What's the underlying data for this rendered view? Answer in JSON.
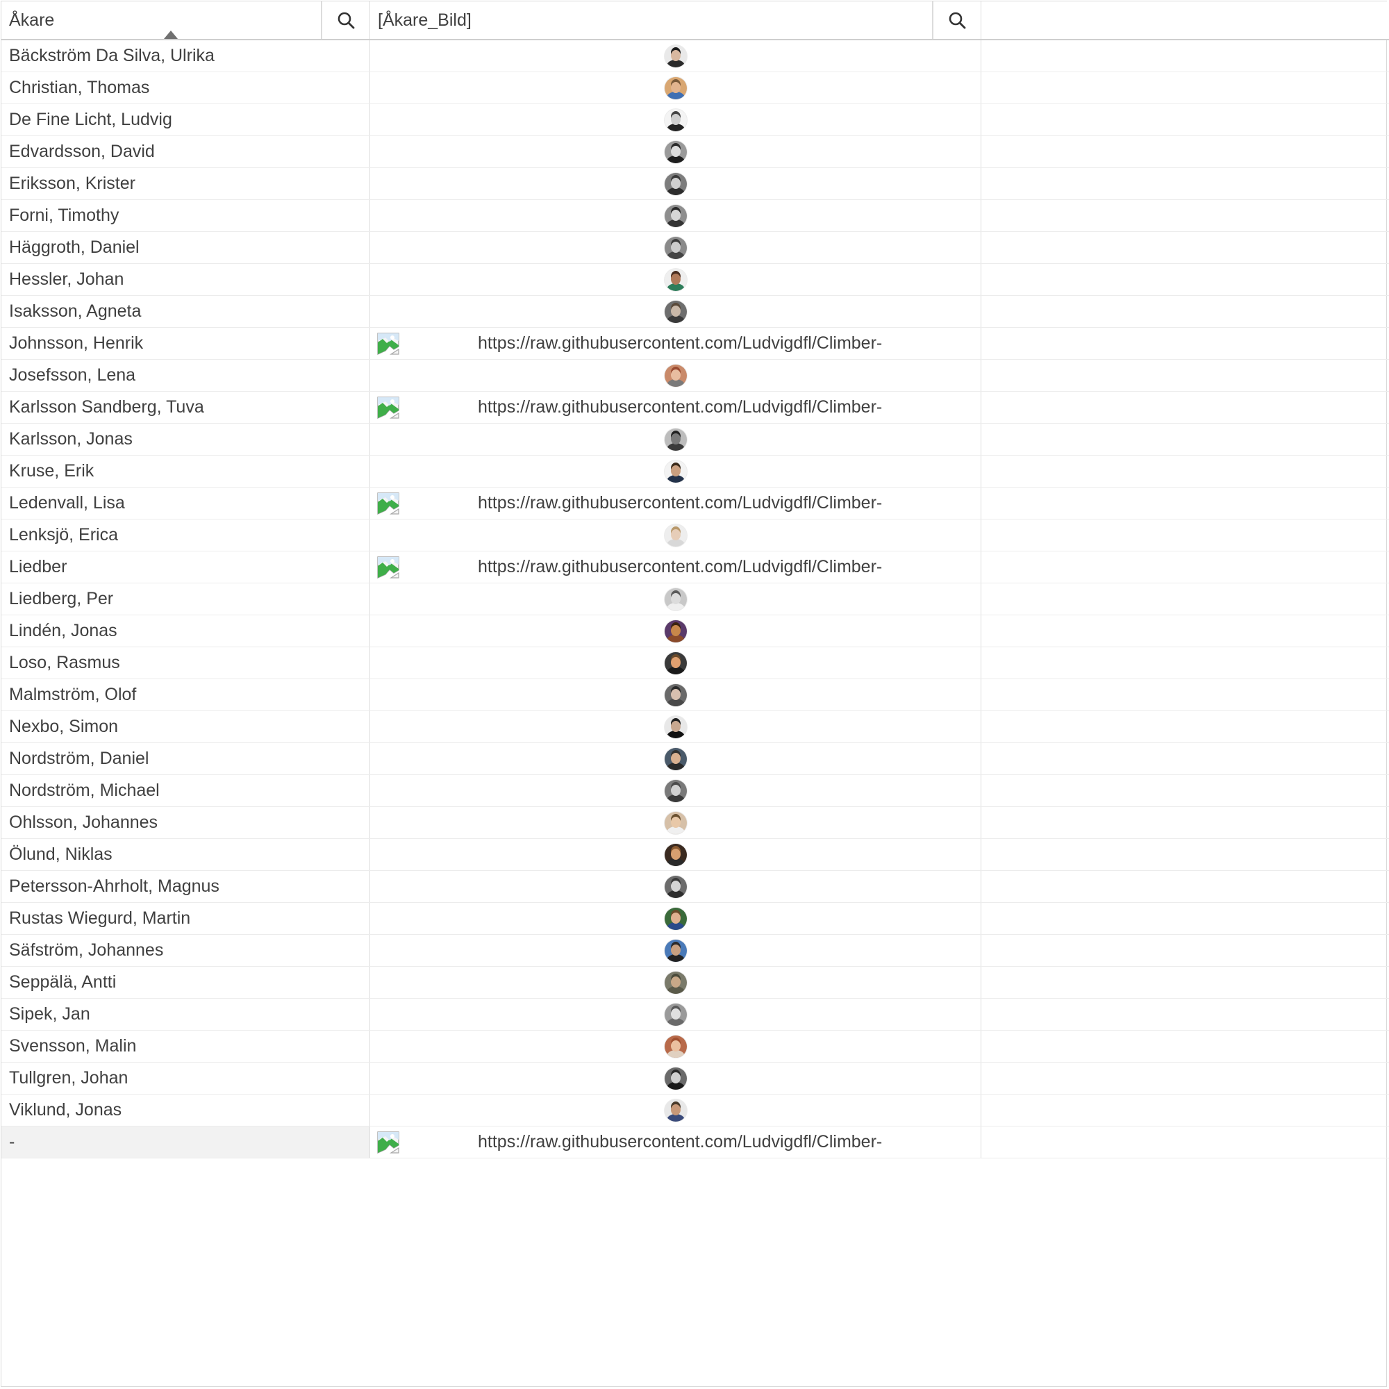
{
  "header": {
    "col1_label": "Åkare",
    "col2_label": "[Åkare_Bild]"
  },
  "colors": {
    "grid_line": "#dcdcdc",
    "header_border": "#cfcfcf",
    "text": "#404040",
    "selected_row_bg": "#f2f2f2",
    "sort_caret": "#707070"
  },
  "url_prefix_text": "https://raw.githubusercontent.com/Ludvigdfl/Climber-",
  "rows": [
    {
      "name": "Bäckström Da Silva, Ulrika",
      "image": "avatar",
      "bg": "#e9e9e9",
      "skin": "#d8b8a0",
      "hair": "#1a1a1a",
      "shirt": "#2a2a2a"
    },
    {
      "name": "Christian, Thomas",
      "image": "avatar",
      "bg": "#d9a772",
      "skin": "#e2b48f",
      "hair": "#7a5a3a",
      "shirt": "#3f6fb3"
    },
    {
      "name": "De Fine Licht, Ludvig",
      "image": "avatar",
      "bg": "#f4f4f4",
      "skin": "#cfcfcf",
      "hair": "#444444",
      "shirt": "#222222"
    },
    {
      "name": "Edvardsson, David",
      "image": "avatar",
      "bg": "#9a9a9a",
      "skin": "#dddddd",
      "hair": "#2b2b2b",
      "shirt": "#1e1e1e"
    },
    {
      "name": "Eriksson, Krister",
      "image": "avatar",
      "bg": "#7d7d7d",
      "skin": "#cfcfcf",
      "hair": "#3a3a3a",
      "shirt": "#2d2d2d"
    },
    {
      "name": "Forni, Timothy",
      "image": "avatar",
      "bg": "#8e8e8e",
      "skin": "#d6d6d6",
      "hair": "#2a2a2a",
      "shirt": "#333333"
    },
    {
      "name": "Häggroth, Daniel",
      "image": "avatar",
      "bg": "#8a8a8a",
      "skin": "#cccccc",
      "hair": "#3c3c3c",
      "shirt": "#444444"
    },
    {
      "name": "Hessler, Johan",
      "image": "avatar",
      "bg": "#efefef",
      "skin": "#b07a5a",
      "hair": "#4a2e20",
      "shirt": "#2e7d5a"
    },
    {
      "name": "Isaksson, Agneta",
      "image": "avatar",
      "bg": "#6e6e6e",
      "skin": "#c9b8a8",
      "hair": "#5a4a3a",
      "shirt": "#3a3a3a"
    },
    {
      "name": "Johnsson, Henrik",
      "image": "broken"
    },
    {
      "name": "Josefsson, Lena",
      "image": "avatar",
      "bg": "#c98a6a",
      "skin": "#e8bda0",
      "hair": "#9a4a30",
      "shirt": "#7a7a7a"
    },
    {
      "name": "Karlsson Sandberg, Tuva",
      "image": "broken"
    },
    {
      "name": "Karlsson, Jonas",
      "image": "avatar",
      "bg": "#bdbdbd",
      "skin": "#7a7a7a",
      "hair": "#222222",
      "shirt": "#3a3a3a"
    },
    {
      "name": "Kruse, Erik",
      "image": "avatar",
      "bg": "#f3f3f3",
      "skin": "#caa080",
      "hair": "#3a2a1a",
      "shirt": "#23324a"
    },
    {
      "name": "Ledenvall, Lisa",
      "image": "broken"
    },
    {
      "name": "Lenksjö, Erica",
      "image": "avatar",
      "bg": "#eeeeee",
      "skin": "#e6cdb8",
      "hair": "#b8986a",
      "shirt": "#d8d8d8"
    },
    {
      "name": "Liedber",
      "image": "broken"
    },
    {
      "name": "Liedberg, Per",
      "image": "avatar",
      "bg": "#c8c8c8",
      "skin": "#dcdcdc",
      "hair": "#5a5a5a",
      "shirt": "#efefef"
    },
    {
      "name": "Lindén, Jonas",
      "image": "avatar",
      "bg": "#5a3a6a",
      "skin": "#c7874a",
      "hair": "#3a2310",
      "shirt": "#8a4a2a"
    },
    {
      "name": "Loso, Rasmus",
      "image": "avatar",
      "bg": "#3a3a3a",
      "skin": "#e0a070",
      "hair": "#6a4a2a",
      "shirt": "#1a1a1a"
    },
    {
      "name": "Malmström, Olof",
      "image": "avatar",
      "bg": "#6a6a6a",
      "skin": "#d8c0b0",
      "hair": "#2a2a2a",
      "shirt": "#4a4a4a"
    },
    {
      "name": "Nexbo, Simon",
      "image": "avatar",
      "bg": "#e8e8e8",
      "skin": "#c8a890",
      "hair": "#1e1e1e",
      "shirt": "#111111"
    },
    {
      "name": "Nordström, Daniel",
      "image": "avatar",
      "bg": "#4a5a6a",
      "skin": "#d9b090",
      "hair": "#303030",
      "shirt": "#2a2a2a"
    },
    {
      "name": "Nordström, Michael",
      "image": "avatar",
      "bg": "#7a7a7a",
      "skin": "#d0d0d0",
      "hair": "#4a4a4a",
      "shirt": "#3a3a3a"
    },
    {
      "name": "Ohlsson, Johannes",
      "image": "avatar",
      "bg": "#d6c0a8",
      "skin": "#e8c8a8",
      "hair": "#6a5030",
      "shirt": "#f0f0f0"
    },
    {
      "name": "Ölund, Niklas",
      "image": "avatar",
      "bg": "#3a2a20",
      "skin": "#d8a070",
      "hair": "#8a5a30",
      "shirt": "#2a2a2a"
    },
    {
      "name": "Petersson-Ahrholt, Magnus",
      "image": "avatar",
      "bg": "#6c6c6c",
      "skin": "#d4d4d4",
      "hair": "#3a3a3a",
      "shirt": "#2e2e2e"
    },
    {
      "name": "Rustas Wiegurd, Martin",
      "image": "avatar",
      "bg": "#3a6a3a",
      "skin": "#e0b090",
      "hair": "#6a4a2a",
      "shirt": "#2a4a8a"
    },
    {
      "name": "Säfström, Johannes",
      "image": "avatar",
      "bg": "#4a7ab8",
      "skin": "#c8a080",
      "hair": "#2a2a2a",
      "shirt": "#222222"
    },
    {
      "name": "Seppälä, Antti",
      "image": "avatar",
      "bg": "#7a7a6a",
      "skin": "#c8a888",
      "hair": "#4a4a3a",
      "shirt": "#5a5a4a"
    },
    {
      "name": "Sipek, Jan",
      "image": "avatar",
      "bg": "#9a9a9a",
      "skin": "#e0e0e0",
      "hair": "#5a5a5a",
      "shirt": "#6a6a6a"
    },
    {
      "name": "Svensson, Malin",
      "image": "avatar",
      "bg": "#b86a4a",
      "skin": "#eac0a0",
      "hair": "#a05030",
      "shirt": "#e0d0c0"
    },
    {
      "name": "Tullgren, Johan",
      "image": "avatar",
      "bg": "#6a6a6a",
      "skin": "#d0d0d0",
      "hair": "#2a2a2a",
      "shirt": "#1a1a1a"
    },
    {
      "name": "Viklund, Jonas",
      "image": "avatar",
      "bg": "#e8e8e8",
      "skin": "#c89878",
      "hair": "#4a3a2a",
      "shirt": "#3a4a7a"
    },
    {
      "name": "-",
      "image": "broken",
      "selected": true
    }
  ]
}
